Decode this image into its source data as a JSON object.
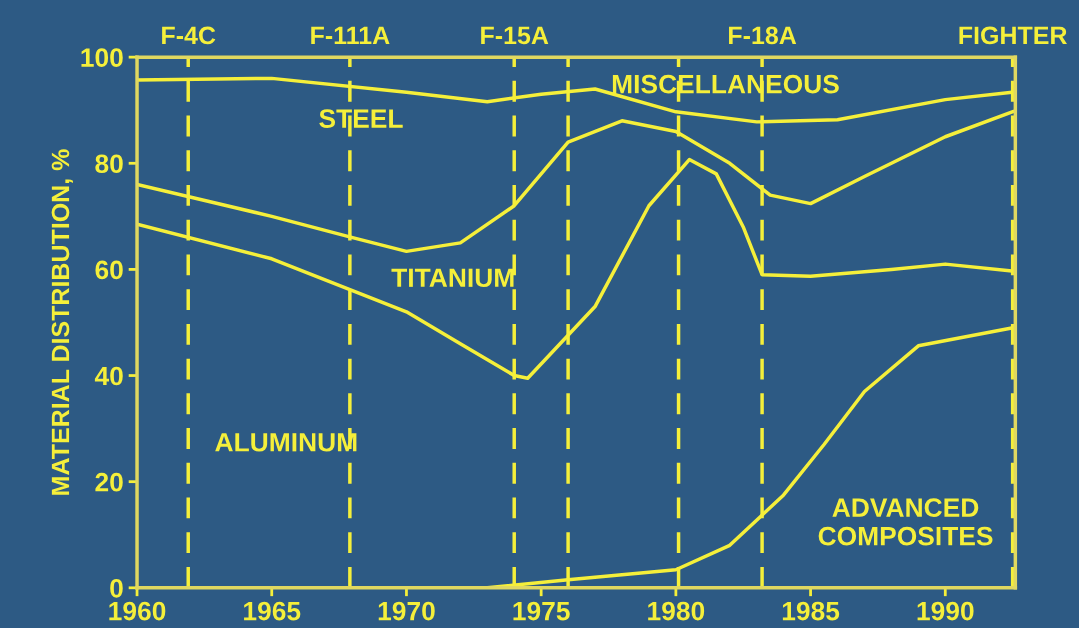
{
  "chart_data": {
    "type": "line",
    "ylabel": "MATERIAL DISTRIBUTION, %",
    "xlim": [
      1960,
      1992.6
    ],
    "ylim": [
      0,
      100
    ],
    "xticks": [
      1960,
      1965,
      1970,
      1975,
      1980,
      1985,
      1990
    ],
    "yticks": [
      0,
      20,
      40,
      60,
      80,
      100
    ],
    "grid": false,
    "legend": false,
    "marker": "none",
    "line_style": "solid",
    "series": [
      {
        "color": "#f5ef3a",
        "x": [
          1960,
          1965,
          1970,
          1972,
          1974,
          1974.5,
          1977,
          1979,
          1980.5,
          1981.5,
          1982.5,
          1983.2,
          1985,
          1988,
          1990,
          1992.5
        ],
        "values": [
          68.5,
          62,
          52,
          46,
          40,
          39.5,
          53,
          72,
          80.7,
          78,
          68,
          59,
          58.7,
          60,
          61,
          59.7
        ]
      },
      {
        "color": "#f5ef3a",
        "x": [
          1960,
          1965,
          1968,
          1970,
          1972,
          1974,
          1976,
          1978,
          1980,
          1982,
          1983.5,
          1985,
          1987,
          1990,
          1992.5
        ],
        "values": [
          76,
          70,
          66,
          63.4,
          65,
          72,
          84,
          88,
          86,
          80,
          74,
          72.4,
          77.5,
          85,
          89.7
        ]
      },
      {
        "color": "#f5ef3a",
        "x": [
          1960,
          1965,
          1970,
          1973,
          1975,
          1977,
          1980,
          1983,
          1986,
          1990,
          1992.5
        ],
        "values": [
          95.7,
          96,
          93.4,
          91.6,
          93,
          94,
          89.7,
          87.8,
          88.2,
          92,
          93.4
        ]
      },
      {
        "color": "#f5ef3a",
        "x": [
          1973,
          1976,
          1980,
          1982,
          1984,
          1985.5,
          1987,
          1989,
          1992.5
        ],
        "values": [
          0,
          1.5,
          3.4,
          8,
          17.5,
          27,
          37,
          45.6,
          49
        ]
      }
    ],
    "ref_lines": [
      {
        "axis": "x",
        "value": 1961.9,
        "label": "F-4C",
        "line_style": "dashed"
      },
      {
        "axis": "x",
        "value": 1967.9,
        "label": "F-111A",
        "line_style": "dashed"
      },
      {
        "axis": "x",
        "value": 1974.0,
        "label": "F-15A",
        "line_style": "dashed"
      },
      {
        "axis": "x",
        "value": 1976.0,
        "label": null,
        "line_style": "dashed"
      },
      {
        "axis": "x",
        "value": 1980.1,
        "label": null,
        "line_style": "dashed"
      },
      {
        "axis": "x",
        "value": 1983.2,
        "label": "F-18A",
        "line_style": "dashed"
      },
      {
        "axis": "x",
        "value": 1992.5,
        "label": "FIGHTER",
        "line_style": "dashed"
      }
    ],
    "annotations": [
      "STEEL",
      "MISCELLANEOUS",
      "TITANIUM",
      "ALUMINUM",
      "ADVANCED\nCOMPOSITES"
    ]
  }
}
